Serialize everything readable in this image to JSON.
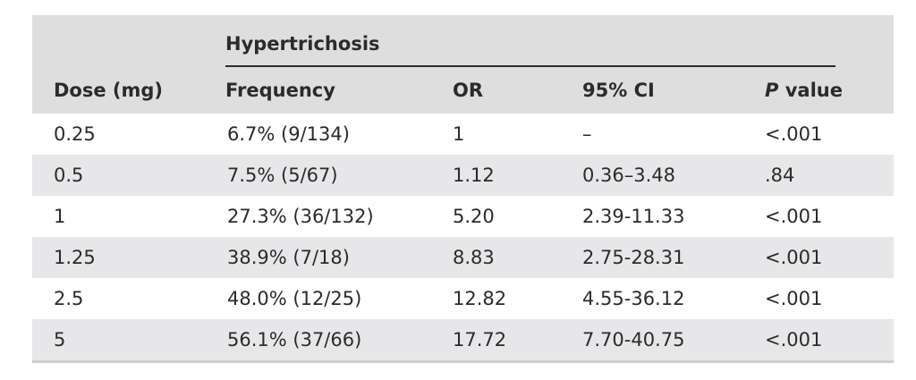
{
  "table": {
    "group_header": "Hypertrichosis",
    "headers": {
      "dose": "Dose (mg)",
      "frequency": "Frequency",
      "or": "OR",
      "ci": "95% CI",
      "p_italic": "P",
      "p_rest": " value"
    },
    "rows": [
      {
        "dose": "0.25",
        "frequency": "6.7% (9/134)",
        "or": "1",
        "ci": "–",
        "p": "<.001"
      },
      {
        "dose": "0.5",
        "frequency": "7.5% (5/67)",
        "or": "1.12",
        "ci": "0.36–3.48",
        "p": ".84"
      },
      {
        "dose": "1",
        "frequency": "27.3% (36/132)",
        "or": "5.20",
        "ci": "2.39-11.33",
        "p": "<.001"
      },
      {
        "dose": "1.25",
        "frequency": "38.9% (7/18)",
        "or": "8.83",
        "ci": "2.75-28.31",
        "p": "<.001"
      },
      {
        "dose": "2.5",
        "frequency": "48.0% (12/25)",
        "or": "12.82",
        "ci": "4.55-36.12",
        "p": "<.001"
      },
      {
        "dose": "5",
        "frequency": "56.1% (37/66)",
        "or": "17.72",
        "ci": "7.70-40.75",
        "p": "<.001"
      }
    ]
  }
}
